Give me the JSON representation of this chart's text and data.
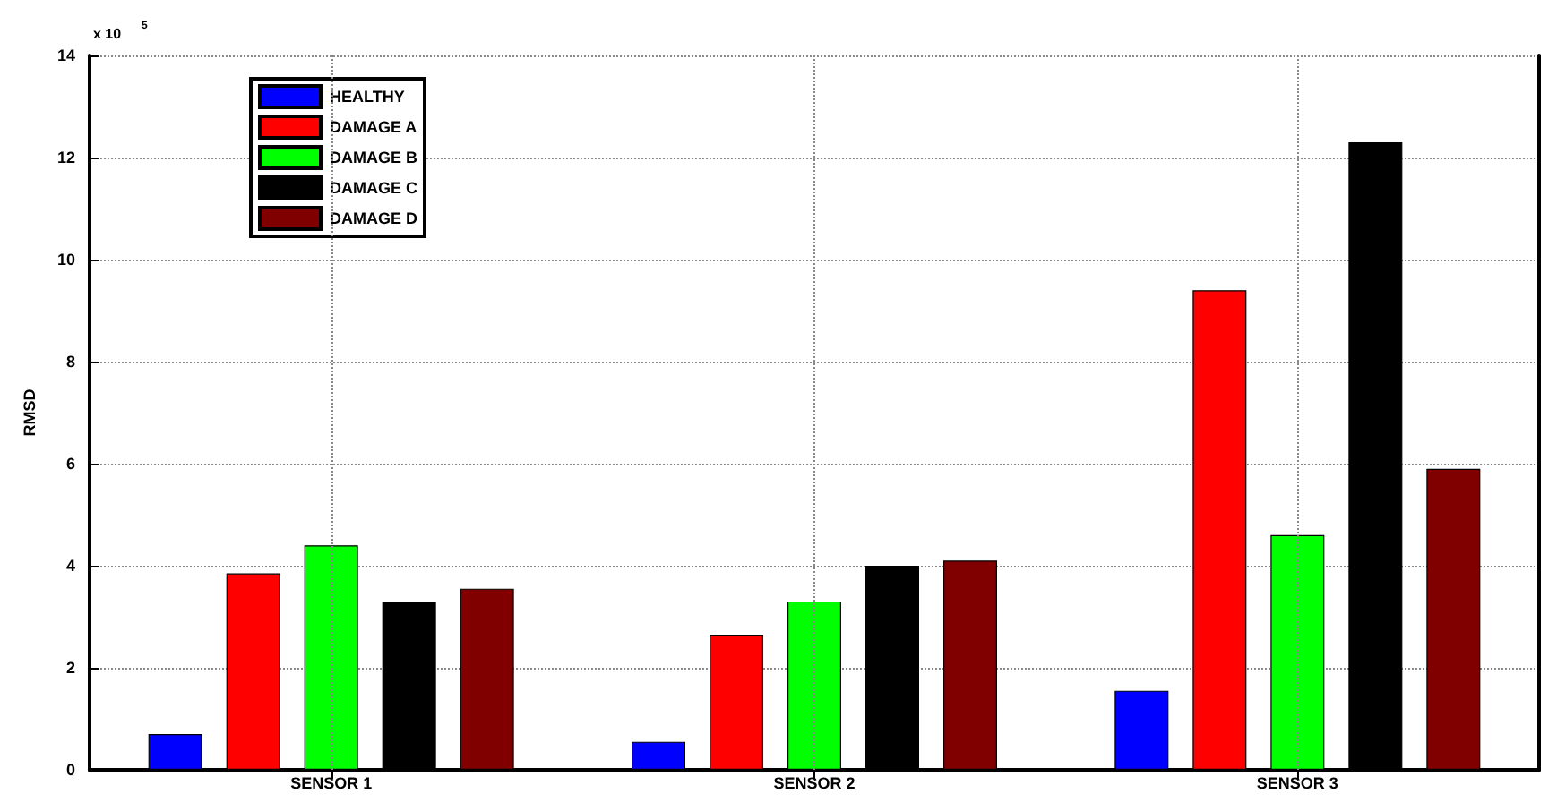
{
  "chart_data": {
    "type": "bar",
    "ylabel": "RMSD",
    "annotations": [
      "x 10$^{5}$"
    ],
    "categories": [
      "SENSOR 1",
      "SENSOR 2",
      "SENSOR 3"
    ],
    "series": [
      {
        "name": "HEALTHY",
        "color": "#0000ff",
        "values": [
          0.7,
          0.55,
          1.55
        ]
      },
      {
        "name": "DAMAGE A",
        "color": "#ff0000",
        "values": [
          3.85,
          2.65,
          9.4
        ]
      },
      {
        "name": "DAMAGE B",
        "color": "#00ff00",
        "values": [
          4.4,
          3.3,
          4.6
        ]
      },
      {
        "name": "DAMAGE C",
        "color": "#000000",
        "values": [
          3.3,
          4.0,
          12.3
        ]
      },
      {
        "name": "DAMAGE D",
        "color": "#800000",
        "values": [
          3.55,
          4.1,
          5.9
        ]
      }
    ],
    "ylim": [
      0,
      14
    ],
    "yticks": [
      0,
      2,
      4,
      6,
      8,
      10,
      12,
      14
    ],
    "grid": true,
    "legend": "top left"
  }
}
